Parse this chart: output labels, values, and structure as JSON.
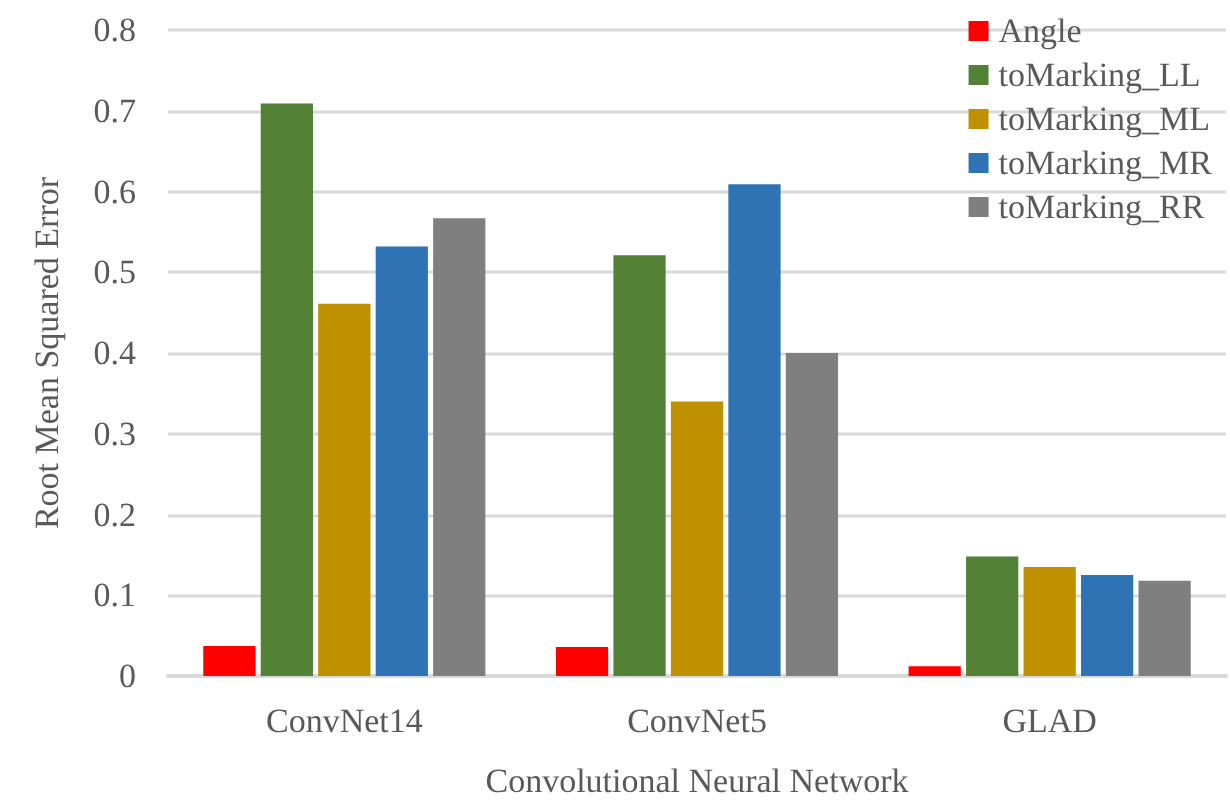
{
  "chart_data": {
    "type": "bar",
    "xlabel": "Convolutional Neural Network",
    "ylabel": "Root Mean Squared Error",
    "categories": [
      "ConvNet14",
      "ConvNet5",
      "GLAD"
    ],
    "series": [
      {
        "name": "Angle",
        "color": "#ff0000",
        "values": [
          0.037,
          0.036,
          0.012
        ]
      },
      {
        "name": "toMarking_LL",
        "color": "#538135",
        "values": [
          0.709,
          0.521,
          0.148
        ]
      },
      {
        "name": "toMarking_ML",
        "color": "#bf9000",
        "values": [
          0.461,
          0.34,
          0.135
        ]
      },
      {
        "name": "toMarking_MR",
        "color": "#2e74b5",
        "values": [
          0.532,
          0.609,
          0.125
        ]
      },
      {
        "name": "toMarking_RR",
        "color": "#7f7f7f",
        "values": [
          0.567,
          0.4,
          0.118
        ]
      }
    ],
    "ylim": [
      0,
      0.8
    ],
    "yticks": [
      0,
      0.1,
      0.2,
      0.3,
      0.4,
      0.5,
      0.6,
      0.7,
      0.8
    ],
    "grid": "y",
    "legend": "top right"
  }
}
